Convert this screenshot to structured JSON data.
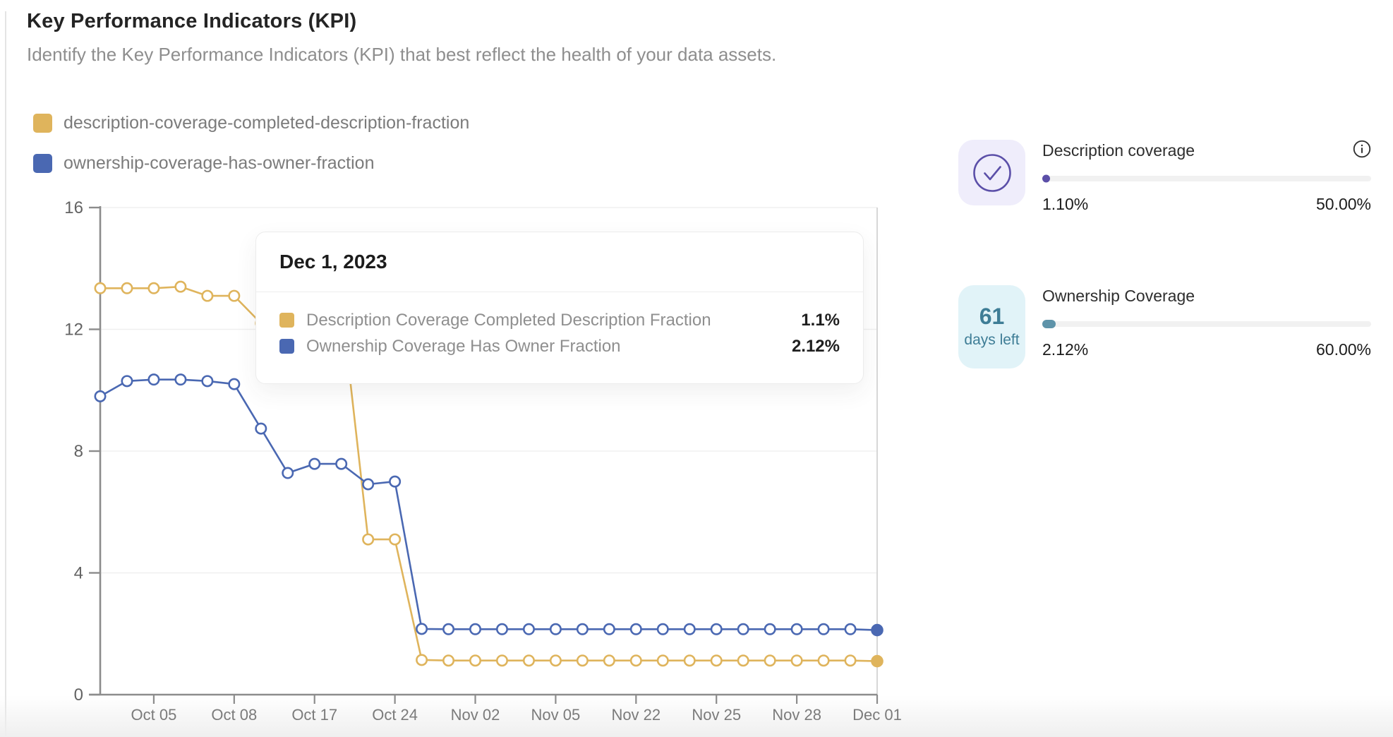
{
  "page": {
    "title": "Key Performance Indicators (KPI)",
    "subtitle": "Identify the Key Performance Indicators (KPI) that best reflect the health of your data assets."
  },
  "legend": [
    {
      "label": "description-coverage-completed-description-fraction",
      "color": "#DFB45C"
    },
    {
      "label": "ownership-coverage-has-owner-fraction",
      "color": "#4A68B2"
    }
  ],
  "chart_data": {
    "type": "line",
    "x_tick_labels": [
      "Oct 05",
      "Oct 08",
      "Oct 17",
      "Oct 24",
      "Nov 02",
      "Nov 05",
      "Nov 22",
      "Nov 25",
      "Nov 28",
      "Dec 01"
    ],
    "tick_offset": 2,
    "tick_every": 3,
    "num_points": 30,
    "ylim": [
      0,
      16
    ],
    "yticks": [
      0,
      4,
      8,
      12,
      16
    ],
    "grid": "horizontal",
    "legend_position": "top-left",
    "hover_index": 29,
    "hover_date": "Dec 1, 2023",
    "series": [
      {
        "name": "description-coverage-completed-description-fraction",
        "color": "#DFB45C",
        "values": [
          13.35,
          13.35,
          13.35,
          13.4,
          13.1,
          13.1,
          12.2,
          12.2,
          12.2,
          12.9,
          5.1,
          5.1,
          1.14,
          1.12,
          1.12,
          1.12,
          1.12,
          1.12,
          1.12,
          1.12,
          1.12,
          1.12,
          1.12,
          1.12,
          1.12,
          1.12,
          1.12,
          1.12,
          1.12,
          1.1
        ]
      },
      {
        "name": "ownership-coverage-has-owner-fraction",
        "color": "#4A68B2",
        "values": [
          9.8,
          10.3,
          10.35,
          10.35,
          10.3,
          10.2,
          8.74,
          7.28,
          7.58,
          7.58,
          6.91,
          7.0,
          2.16,
          2.15,
          2.15,
          2.15,
          2.15,
          2.15,
          2.15,
          2.15,
          2.15,
          2.15,
          2.15,
          2.15,
          2.15,
          2.15,
          2.15,
          2.15,
          2.15,
          2.12
        ]
      }
    ]
  },
  "tooltip": {
    "title": "Dec 1, 2023",
    "rows": [
      {
        "label": "Description Coverage Completed Description Fraction",
        "value": "1.1%",
        "color": "#DFB45C"
      },
      {
        "label": "Ownership Coverage Has Owner Fraction",
        "value": "2.12%",
        "color": "#4A68B2"
      }
    ]
  },
  "kpi_cards": [
    {
      "title": "Description coverage",
      "current": "1.10%",
      "target": "50.00%",
      "accent": "#5B4FA8",
      "icon": "check-circle-icon",
      "icon_bg": "#EFEDFB",
      "info_color": "#2f2f2f"
    },
    {
      "title": "Ownership Coverage",
      "current": "2.12%",
      "target": "60.00%",
      "accent": "#5E93A9",
      "badge": {
        "value": "61",
        "label": "days left",
        "bg": "#E1F3F8",
        "color": "#3E7D96"
      }
    }
  ]
}
